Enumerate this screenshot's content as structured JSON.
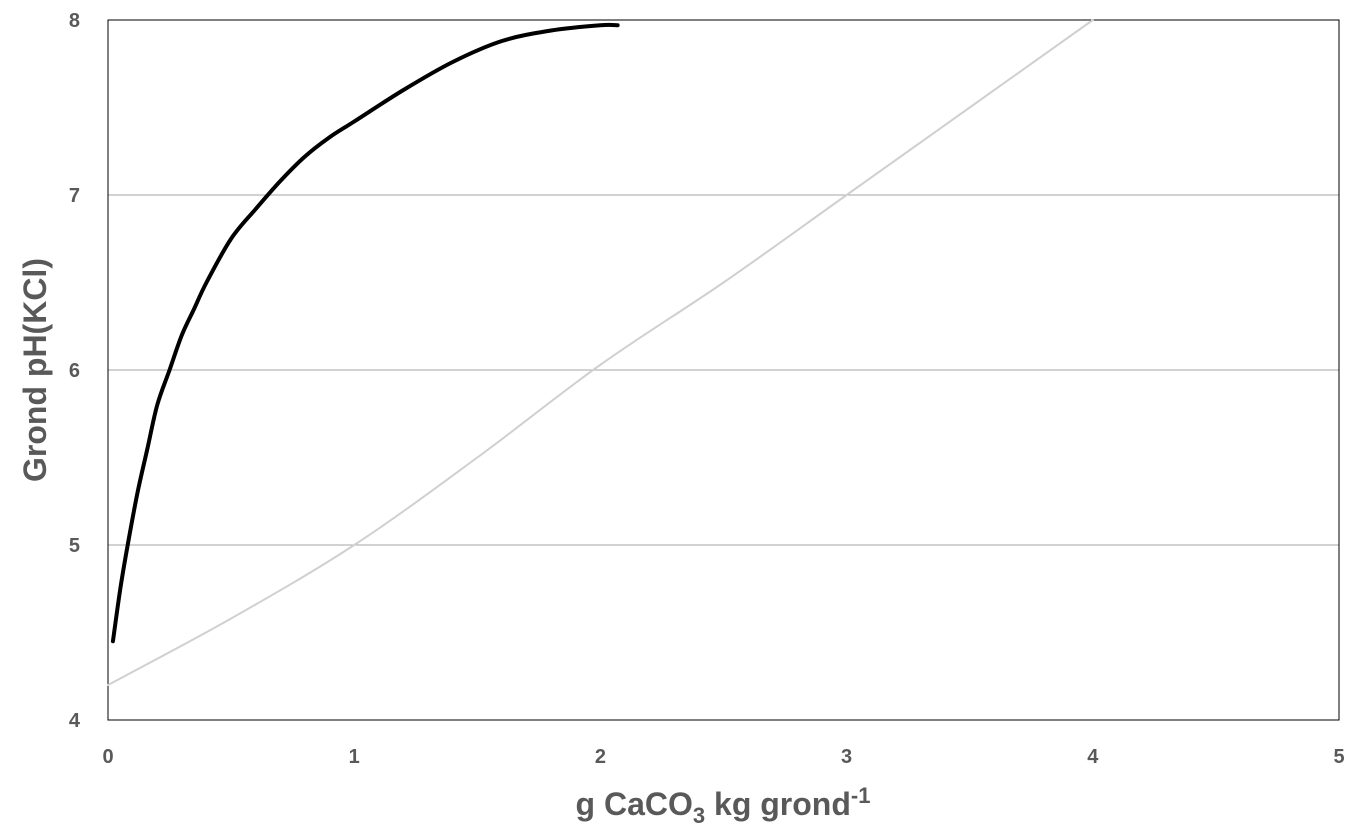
{
  "chart_data": {
    "type": "line",
    "title": "",
    "xlabel": {
      "prefix": "g CaCO",
      "subscript": "3",
      "middle": " kg grond",
      "superscript": "-1"
    },
    "ylabel": "Grond pH(KCl)",
    "xlim": [
      0,
      5
    ],
    "ylim": [
      4,
      8
    ],
    "xticks": [
      0,
      1,
      2,
      3,
      4,
      5
    ],
    "yticks": [
      4,
      5,
      6,
      7,
      8
    ],
    "grid": "horizontal",
    "legend": "none",
    "series": [
      {
        "color": "#000000",
        "style": "solid",
        "x": [
          0.02,
          0.05,
          0.08,
          0.12,
          0.16,
          0.2,
          0.25,
          0.3,
          0.35,
          0.4,
          0.5,
          0.6,
          0.7,
          0.8,
          0.9,
          1.0,
          1.2,
          1.4,
          1.6,
          1.8,
          2.0,
          2.07
        ],
        "y": [
          4.45,
          4.75,
          5.0,
          5.3,
          5.55,
          5.8,
          6.0,
          6.2,
          6.35,
          6.5,
          6.75,
          6.92,
          7.08,
          7.22,
          7.33,
          7.42,
          7.6,
          7.76,
          7.88,
          7.94,
          7.97,
          7.97
        ]
      },
      {
        "color": "#d0d0d0",
        "style": "solid",
        "x": [
          0.0,
          0.5,
          1.0,
          1.5,
          2.0,
          2.5,
          3.0,
          3.5,
          4.0
        ],
        "y": [
          4.2,
          4.58,
          5.0,
          5.5,
          6.03,
          6.5,
          7.0,
          7.5,
          8.0
        ]
      }
    ]
  }
}
